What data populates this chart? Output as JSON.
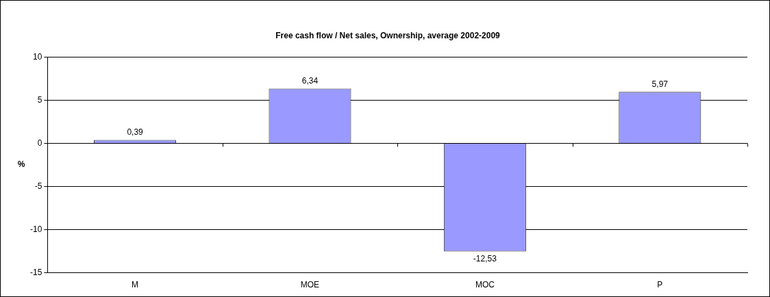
{
  "chart_data": {
    "type": "bar",
    "title": "Free cash flow / Net sales, Ownership, average 2002-2009",
    "ylabel": "%",
    "categories": [
      "M",
      "MOE",
      "MOC",
      "P"
    ],
    "values": [
      0.39,
      6.34,
      -12.53,
      5.97
    ],
    "value_labels": [
      "0,39",
      "6,34",
      "-12,53",
      "5,97"
    ],
    "color": "#9999ff",
    "ylim": [
      -15,
      10
    ],
    "yticks": [
      -15,
      -10,
      -5,
      0,
      5,
      10
    ],
    "grid": "y",
    "legend": false
  }
}
